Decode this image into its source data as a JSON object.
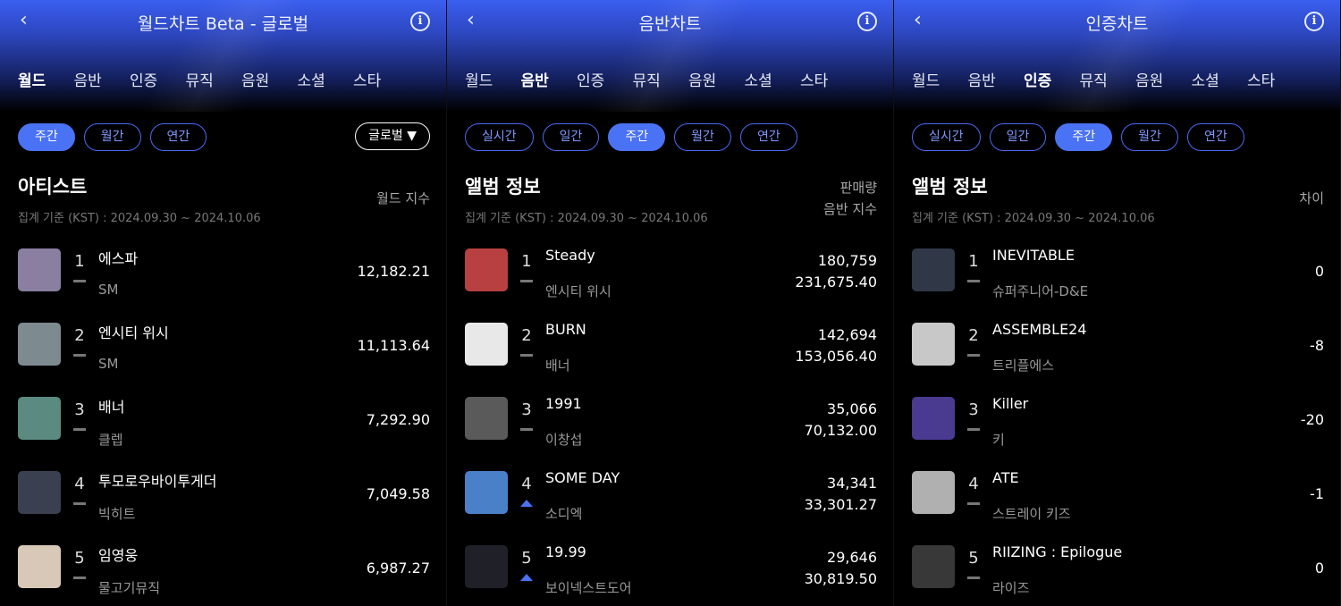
{
  "colors": {
    "accent": "#4a72f5",
    "up": "#4a72f5"
  },
  "panels": [
    {
      "title": "월드차트 Beta - 글로벌",
      "tabs": [
        "월드",
        "음반",
        "인증",
        "뮤직",
        "음원",
        "소셜",
        "스타"
      ],
      "active_tab": 0,
      "chips": [
        "주간",
        "월간",
        "연간"
      ],
      "active_chip": 0,
      "region": "글로벌 ▼",
      "section": "아티스트",
      "date": "집계 기준 (KST) : 2024.09.30 ~ 2024.10.06",
      "col_headers": [
        "월드 지수"
      ],
      "rows": [
        {
          "rank": "1",
          "name": "에스파",
          "sub": "SM",
          "change": "same",
          "values": [
            "12,182.21"
          ],
          "thumb": "#8a7fa0"
        },
        {
          "rank": "2",
          "name": "엔시티 위시",
          "sub": "SM",
          "change": "same",
          "values": [
            "11,113.64"
          ],
          "thumb": "#7d8a90"
        },
        {
          "rank": "3",
          "name": "배너",
          "sub": "클렙",
          "change": "same",
          "values": [
            "7,292.90"
          ],
          "thumb": "#5a8a80"
        },
        {
          "rank": "4",
          "name": "투모로우바이투게더",
          "sub": "빅히트",
          "change": "same",
          "values": [
            "7,049.58"
          ],
          "thumb": "#3a4050"
        },
        {
          "rank": "5",
          "name": "임영웅",
          "sub": "물고기뮤직",
          "change": "same",
          "values": [
            "6,987.27"
          ],
          "thumb": "#d8c8b8"
        }
      ]
    },
    {
      "title": "음반차트",
      "tabs": [
        "월드",
        "음반",
        "인증",
        "뮤직",
        "음원",
        "소셜",
        "스타"
      ],
      "active_tab": 1,
      "chips": [
        "실시간",
        "일간",
        "주간",
        "월간",
        "연간"
      ],
      "active_chip": 2,
      "section": "앨범 정보",
      "date": "집계 기준 (KST) : 2024.09.30 ~ 2024.10.06",
      "col_headers": [
        "판매량",
        "음반 지수"
      ],
      "rows": [
        {
          "rank": "1",
          "name": "Steady",
          "sub": "엔시티 위시",
          "change": "same",
          "values": [
            "180,759",
            "231,675.40"
          ],
          "thumb": "#b84040"
        },
        {
          "rank": "2",
          "name": "BURN",
          "sub": "배너",
          "change": "same",
          "values": [
            "142,694",
            "153,056.40"
          ],
          "thumb": "#e8e8e8"
        },
        {
          "rank": "3",
          "name": "1991",
          "sub": "이창섭",
          "change": "same",
          "values": [
            "35,066",
            "70,132.00"
          ],
          "thumb": "#5a5a5a"
        },
        {
          "rank": "4",
          "name": "SOME DAY",
          "sub": "소디엑",
          "change": "up",
          "values": [
            "34,341",
            "33,301.27"
          ],
          "thumb": "#4a80c8"
        },
        {
          "rank": "5",
          "name": "19.99",
          "sub": "보이넥스트도어",
          "change": "up",
          "values": [
            "29,646",
            "30,819.50"
          ],
          "thumb": "#202028"
        }
      ]
    },
    {
      "title": "인증차트",
      "tabs": [
        "월드",
        "음반",
        "인증",
        "뮤직",
        "음원",
        "소셜",
        "스타"
      ],
      "active_tab": 2,
      "chips": [
        "실시간",
        "일간",
        "주간",
        "월간",
        "연간"
      ],
      "active_chip": 2,
      "section": "앨범 정보",
      "date": "집계 기준 (KST) : 2024.09.30 ~ 2024.10.06",
      "col_headers": [
        "차이"
      ],
      "rows": [
        {
          "rank": "1",
          "name": "INEVITABLE",
          "sub": "슈퍼주니어-D&E",
          "change": "same",
          "values": [
            "0"
          ],
          "thumb": "#303848"
        },
        {
          "rank": "2",
          "name": "ASSEMBLE24",
          "sub": "트리플에스",
          "change": "same",
          "values": [
            "-8"
          ],
          "thumb": "#c8c8c8"
        },
        {
          "rank": "3",
          "name": "Killer",
          "sub": "키",
          "change": "same",
          "values": [
            "-20"
          ],
          "thumb": "#4a3a90"
        },
        {
          "rank": "4",
          "name": "ATE",
          "sub": "스트레이 키즈",
          "change": "same",
          "values": [
            "-1"
          ],
          "thumb": "#b0b0b0"
        },
        {
          "rank": "5",
          "name": "RIIZING : Epilogue",
          "sub": "라이즈",
          "change": "same",
          "values": [
            "0"
          ],
          "thumb": "#383838"
        }
      ]
    }
  ]
}
